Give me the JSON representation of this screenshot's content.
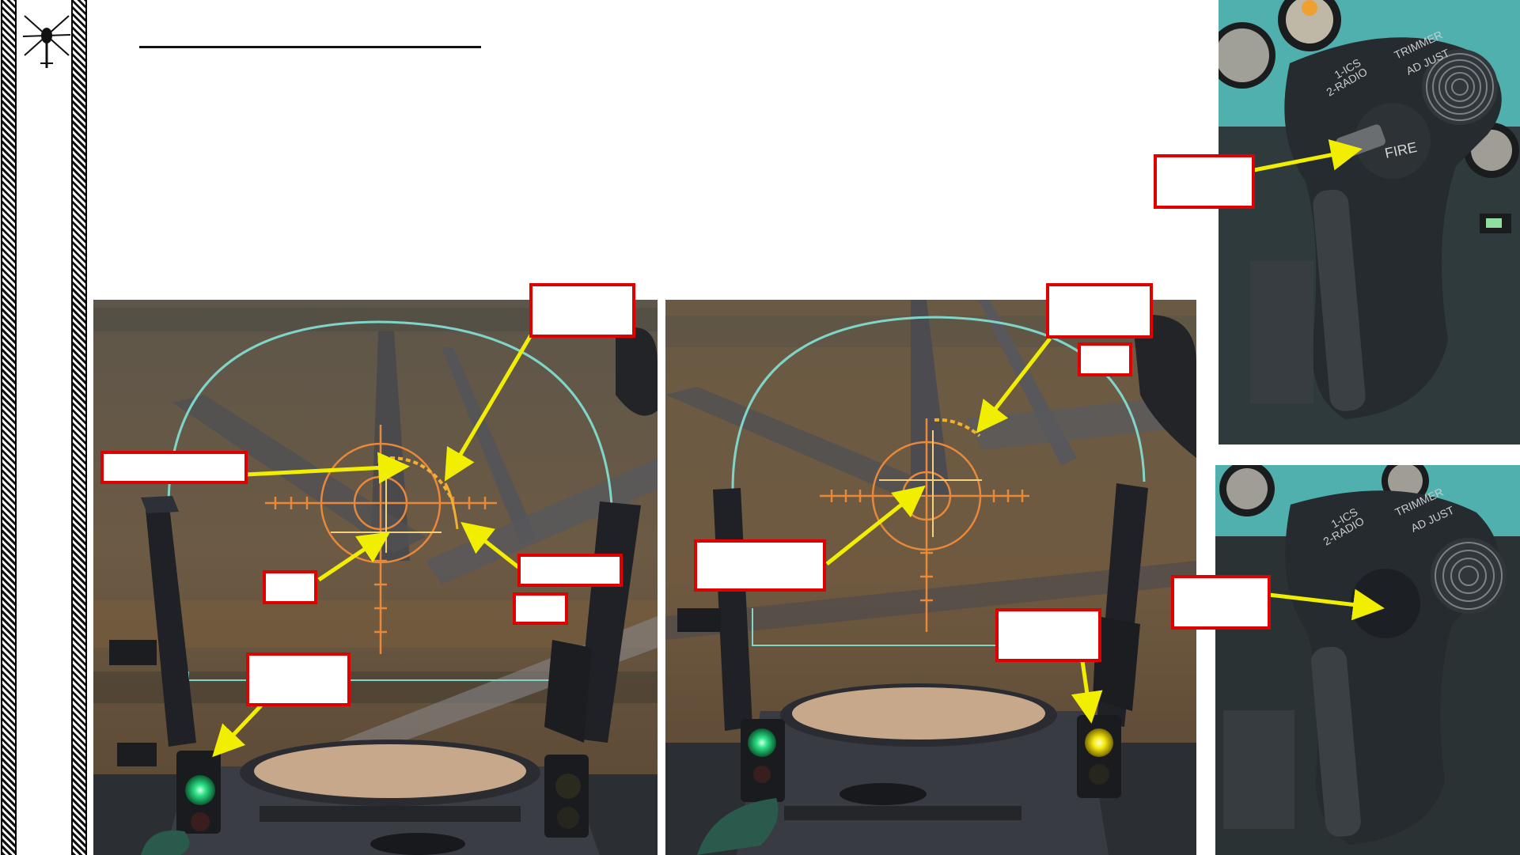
{
  "slide": {
    "logo_icon": "helicopter-icon",
    "title": "",
    "colors": {
      "callout_border": "#e00000",
      "arrow": "#f2ee00",
      "reticle": "#e8883a",
      "collimator_ring": "#7fd6c8",
      "lamp_green": "#22e080",
      "lamp_yellow": "#f6ea10"
    }
  },
  "panels": {
    "sight_left": {
      "lamp_icon": "green-lamp-icon"
    },
    "sight_right": {
      "lamp_icons": [
        "green-lamp-icon",
        "yellow-lamp-icon"
      ]
    },
    "stick_top": {
      "button_text": "FIRE",
      "stick_text": [
        "1-ICS",
        "2-RADIO",
        "TRIMMER",
        "AD JUST"
      ]
    },
    "stick_bottom": {
      "stick_text": [
        "1-ICS",
        "2-RADIO",
        "TRIMMER",
        "AD JUST"
      ]
    }
  },
  "callouts": [
    "",
    "",
    "",
    "",
    "",
    "",
    "",
    "",
    "",
    "",
    "",
    ""
  ]
}
